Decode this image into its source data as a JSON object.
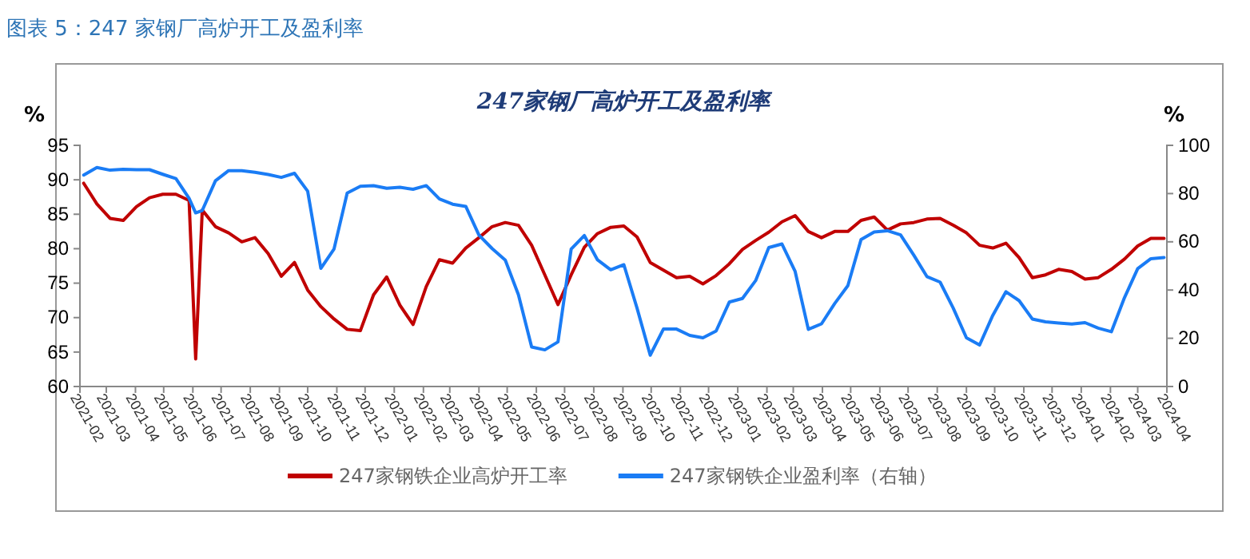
{
  "chart_data": {
    "type": "line",
    "title": "247家钢厂高炉开工及盈利率",
    "annotations": [
      "图表 5：247 家钢厂高炉开工及盈利率"
    ],
    "ylabel": "%",
    "y2label": "%",
    "x": [
      "2021-02-05",
      "2021-02-19",
      "2021-03-05",
      "2021-03-19",
      "2021-04-02",
      "2021-04-16",
      "2021-04-30",
      "2021-05-14",
      "2021-05-28",
      "2021-06-04",
      "2021-06-11",
      "2021-06-25",
      "2021-07-09",
      "2021-07-23",
      "2021-08-06",
      "2021-08-20",
      "2021-09-03",
      "2021-09-17",
      "2021-10-01",
      "2021-10-15",
      "2021-10-29",
      "2021-11-12",
      "2021-11-26",
      "2021-12-10",
      "2021-12-24",
      "2022-01-07",
      "2022-01-21",
      "2022-02-04",
      "2022-02-18",
      "2022-03-04",
      "2022-03-18",
      "2022-04-01",
      "2022-04-15",
      "2022-04-29",
      "2022-05-13",
      "2022-05-27",
      "2022-06-10",
      "2022-06-24",
      "2022-07-08",
      "2022-07-22",
      "2022-08-05",
      "2022-08-19",
      "2022-09-02",
      "2022-09-16",
      "2022-09-30",
      "2022-10-14",
      "2022-10-28",
      "2022-11-11",
      "2022-11-25",
      "2022-12-09",
      "2022-12-23",
      "2023-01-06",
      "2023-01-20",
      "2023-02-03",
      "2023-02-17",
      "2023-03-03",
      "2023-03-17",
      "2023-03-31",
      "2023-04-14",
      "2023-04-28",
      "2023-05-12",
      "2023-05-26",
      "2023-06-09",
      "2023-06-23",
      "2023-07-07",
      "2023-07-21",
      "2023-08-04",
      "2023-08-18",
      "2023-09-01",
      "2023-09-15",
      "2023-09-29",
      "2023-10-13",
      "2023-10-27",
      "2023-11-10",
      "2023-11-24",
      "2023-12-08",
      "2023-12-22",
      "2024-01-05",
      "2024-01-19",
      "2024-02-02",
      "2024-02-16",
      "2024-03-01",
      "2024-03-15",
      "2024-03-29"
    ],
    "series": [
      {
        "name": "247家钢铁企业高炉开工率",
        "color": "#c00000",
        "values": [
          89.5,
          86.5,
          84.4,
          84.1,
          86.1,
          87.4,
          87.9,
          87.9,
          87.0,
          64,
          85.6,
          83.2,
          82.3,
          81,
          81.6,
          79.3,
          76,
          78,
          74,
          71.6,
          69.8,
          68.3,
          68.1,
          73.3,
          75.9,
          71.8,
          69,
          74.5,
          78.4,
          77.9,
          80.1,
          81.6,
          83.2,
          83.8,
          83.4,
          80.5,
          76.2,
          71.9,
          76.2,
          80.2,
          82.2,
          83.1,
          83.3,
          81.7,
          78,
          76.9,
          75.8,
          76,
          74.9,
          76.1,
          77.8,
          79.9,
          81.2,
          82.4,
          83.9,
          84.8,
          82.5,
          81.6,
          82.5,
          82.5,
          84.1,
          84.6,
          82.7,
          83.6,
          83.8,
          84.3,
          84.4,
          83.4,
          82.3,
          80.5,
          80.1,
          80.8,
          78.7,
          75.8,
          76.2,
          77,
          76.7,
          75.6,
          75.8,
          77,
          78.5,
          80.4,
          81.5,
          81.5
        ]
      },
      {
        "name": "247家钢铁企业盈利率（右轴）",
        "color": "#1a7cf5",
        "axis": "y2",
        "values": [
          87.7,
          90.8,
          89.7,
          90.1,
          89.9,
          89.9,
          88,
          86.2,
          78,
          72,
          73,
          85.3,
          89.5,
          89.5,
          88.8,
          87.9,
          86.7,
          88.4,
          81,
          49,
          57,
          80.2,
          83,
          83.3,
          82.2,
          82.6,
          81.8,
          83.3,
          77.8,
          75.6,
          74.7,
          62.8,
          57.2,
          52.4,
          38,
          16.4,
          15.2,
          18.5,
          57,
          62.6,
          52.5,
          48.4,
          50.5,
          32.5,
          13,
          23.8,
          23.8,
          21.2,
          20.2,
          23,
          35,
          36.5,
          43.9,
          57.6,
          59.1,
          47.7,
          23.7,
          26,
          34.4,
          41.8,
          60.9,
          64.1,
          64.6,
          62.9,
          54.5,
          45.6,
          43.3,
          32.5,
          20.2,
          17.2,
          29.5,
          39.3,
          35.6,
          28,
          26.8,
          26.3,
          25.9,
          26.5,
          24.2,
          22.7,
          36.9,
          48.9,
          53,
          53.5
        ]
      }
    ],
    "xlim": [
      "2021-02-01",
      "2024-04-01"
    ],
    "xticks": [
      "2021-02",
      "2021-03",
      "2021-04",
      "2021-05",
      "2021-06",
      "2021-07",
      "2021-08",
      "2021-09",
      "2021-10",
      "2021-11",
      "2021-12",
      "2022-01",
      "2022-02",
      "2022-03",
      "2022-04",
      "2022-05",
      "2022-06",
      "2022-07",
      "2022-08",
      "2022-09",
      "2022-10",
      "2022-11",
      "2022-12",
      "2023-01",
      "2023-02",
      "2023-03",
      "2023-04",
      "2023-05",
      "2023-06",
      "2023-07",
      "2023-08",
      "2023-09",
      "2023-10",
      "2023-11",
      "2023-12",
      "2024-01",
      "2024-02",
      "2024-03",
      "2024-04"
    ],
    "ylim": [
      60,
      95
    ],
    "yticks": [
      60,
      65,
      70,
      75,
      80,
      85,
      90,
      95
    ],
    "y2lim": [
      0,
      100
    ],
    "y2ticks": [
      0,
      20,
      40,
      60,
      80,
      100
    ],
    "legend": "bottom",
    "grid": false,
    "marker": "none",
    "line_style": "solid"
  }
}
